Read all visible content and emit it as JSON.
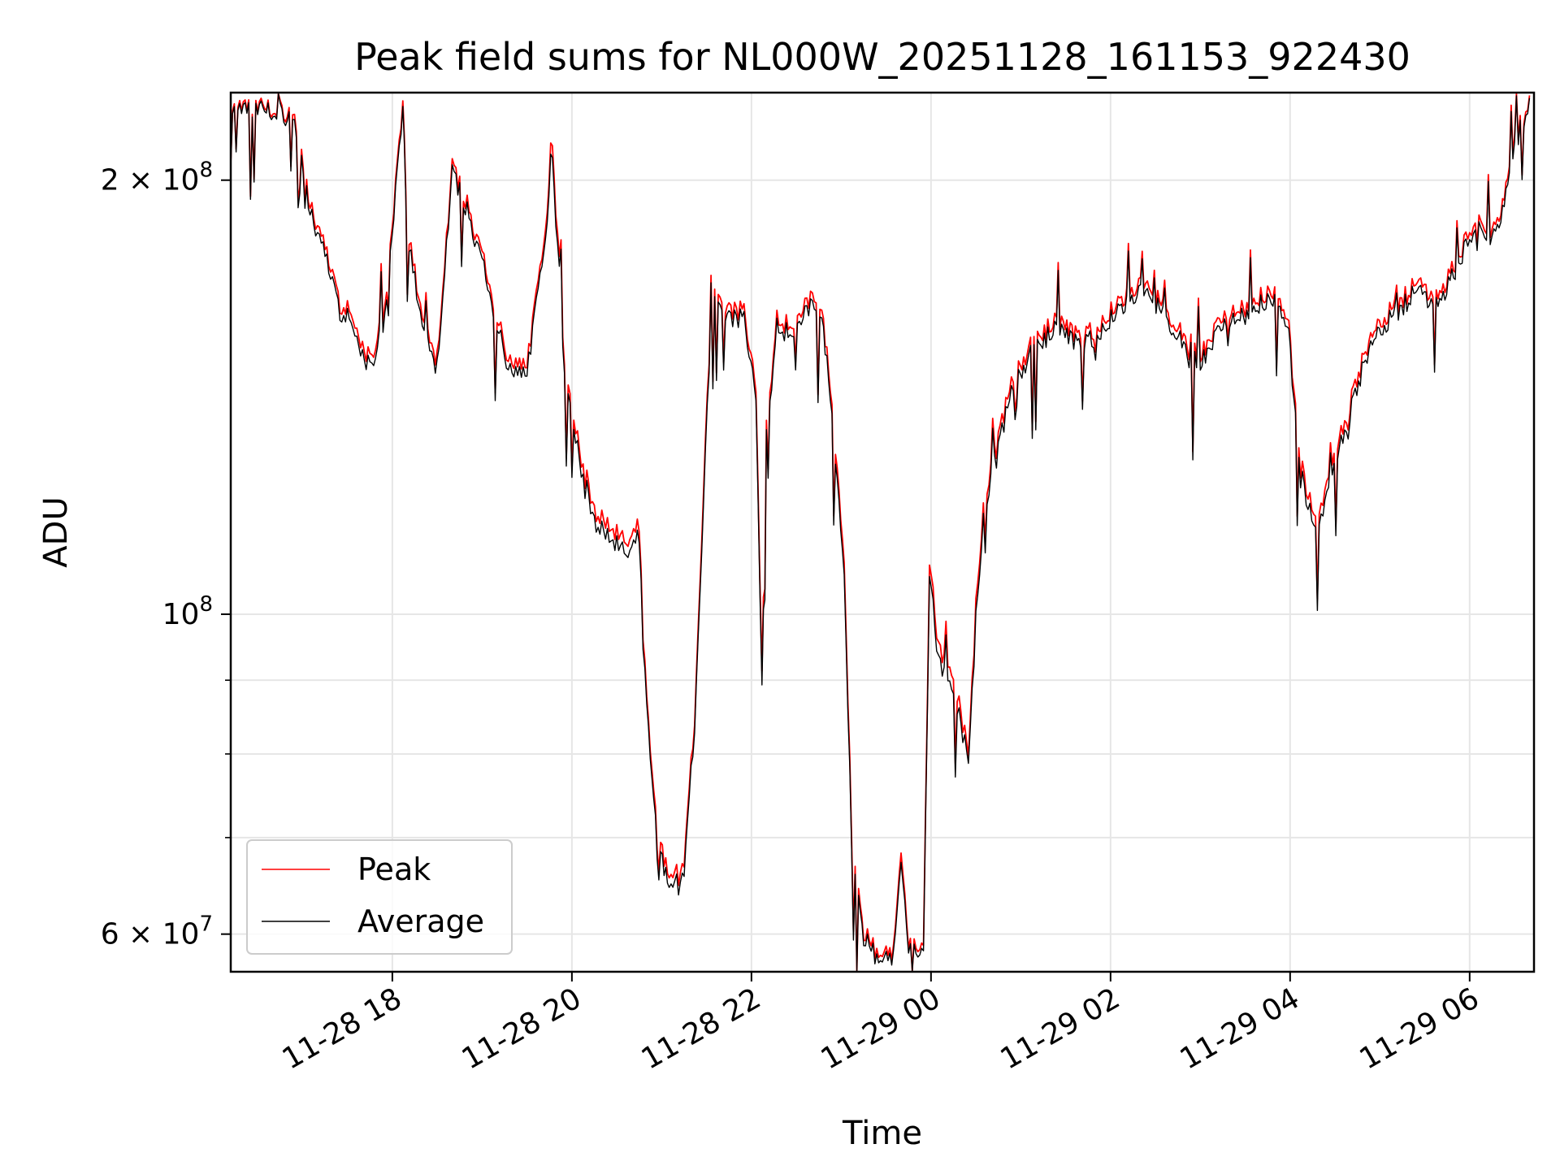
{
  "chart_data": {
    "type": "line",
    "title": "Peak field sums for NL000W_20251128_161153_922430",
    "xlabel": "Time",
    "ylabel": "ADU",
    "yscale": "log",
    "ylim": [
      56500000,
      230000000
    ],
    "xlim": [
      "2025-11-28T16:12",
      "2025-11-29T06:43"
    ],
    "grid": true,
    "legend": "lower-left",
    "x_ticks": [
      {
        "t": "2025-11-28T18:00",
        "label": "11-28 18"
      },
      {
        "t": "2025-11-28T20:00",
        "label": "11-28 20"
      },
      {
        "t": "2025-11-28T22:00",
        "label": "11-28 22"
      },
      {
        "t": "2025-11-29T00:00",
        "label": "11-29 00"
      },
      {
        "t": "2025-11-29T02:00",
        "label": "11-29 02"
      },
      {
        "t": "2025-11-29T04:00",
        "label": "11-29 04"
      },
      {
        "t": "2025-11-29T06:00",
        "label": "11-29 06"
      }
    ],
    "y_ticks_major": [
      {
        "v": 200000000,
        "mant": "2",
        "exp": "8"
      },
      {
        "v": 100000000,
        "mant": "",
        "exp": "8"
      },
      {
        "v": 60000000,
        "mant": "6",
        "exp": "7"
      }
    ],
    "y_ticks_minor": [
      70000000,
      80000000,
      90000000
    ],
    "series": [
      {
        "name": "Peak",
        "color": "#ff0000",
        "points": [
          [
            "2025-11-28T16:12",
            224000000
          ],
          [
            "2025-11-28T16:30",
            225000000
          ],
          [
            "2025-11-28T16:45",
            224000000
          ],
          [
            "2025-11-28T16:57",
            219000000
          ],
          [
            "2025-11-28T17:05",
            192000000
          ],
          [
            "2025-11-28T17:15",
            180000000
          ],
          [
            "2025-11-28T17:25",
            165000000
          ],
          [
            "2025-11-28T17:35",
            158000000
          ],
          [
            "2025-11-28T17:45",
            150000000
          ],
          [
            "2025-11-28T17:55",
            162000000
          ],
          [
            "2025-11-28T18:07",
            226000000
          ],
          [
            "2025-11-28T18:10",
            185000000
          ],
          [
            "2025-11-28T18:20",
            160000000
          ],
          [
            "2025-11-28T18:30",
            150000000
          ],
          [
            "2025-11-28T18:40",
            205000000
          ],
          [
            "2025-11-28T18:50",
            192000000
          ],
          [
            "2025-11-28T19:00",
            178000000
          ],
          [
            "2025-11-28T19:10",
            160000000
          ],
          [
            "2025-11-28T19:20",
            148000000
          ],
          [
            "2025-11-28T19:30",
            150000000
          ],
          [
            "2025-11-28T19:40",
            175000000
          ],
          [
            "2025-11-28T19:47",
            212000000
          ],
          [
            "2025-11-28T19:55",
            150000000
          ],
          [
            "2025-11-28T20:05",
            128000000
          ],
          [
            "2025-11-28T20:15",
            118000000
          ],
          [
            "2025-11-28T20:25",
            115000000
          ],
          [
            "2025-11-28T20:35",
            112000000
          ],
          [
            "2025-11-28T20:45",
            115000000
          ],
          [
            "2025-11-28T20:50",
            88000000
          ],
          [
            "2025-11-28T20:57",
            70000000
          ],
          [
            "2025-11-28T21:05",
            66000000
          ],
          [
            "2025-11-28T21:15",
            67000000
          ],
          [
            "2025-11-28T21:22",
            85000000
          ],
          [
            "2025-11-28T21:28",
            120000000
          ],
          [
            "2025-11-28T21:33",
            170000000
          ],
          [
            "2025-11-28T21:45",
            162000000
          ],
          [
            "2025-11-28T21:55",
            163000000
          ],
          [
            "2025-11-28T22:03",
            145000000
          ],
          [
            "2025-11-28T22:07",
            92000000
          ],
          [
            "2025-11-28T22:10",
            135000000
          ],
          [
            "2025-11-28T22:17",
            160000000
          ],
          [
            "2025-11-28T22:27",
            158000000
          ],
          [
            "2025-11-28T22:37",
            165000000
          ],
          [
            "2025-11-28T22:47",
            164000000
          ],
          [
            "2025-11-28T22:55",
            135000000
          ],
          [
            "2025-11-28T23:02",
            110000000
          ],
          [
            "2025-11-28T23:07",
            70000000
          ],
          [
            "2025-11-28T23:15",
            60000000
          ],
          [
            "2025-11-28T23:25",
            58000000
          ],
          [
            "2025-11-28T23:35",
            58500000
          ],
          [
            "2025-11-28T23:40",
            68000000
          ],
          [
            "2025-11-28T23:45",
            59000000
          ],
          [
            "2025-11-28T23:55",
            59500000
          ],
          [
            "2025-11-28T23:59",
            110000000
          ],
          [
            "2025-11-29T00:05",
            95000000
          ],
          [
            "2025-11-29T00:15",
            90000000
          ],
          [
            "2025-11-29T00:25",
            80000000
          ],
          [
            "2025-11-29T00:30",
            100000000
          ],
          [
            "2025-11-29T00:35",
            120000000
          ],
          [
            "2025-11-29T00:45",
            132000000
          ],
          [
            "2025-11-29T00:55",
            147000000
          ],
          [
            "2025-11-29T01:10",
            155000000
          ],
          [
            "2025-11-29T01:25",
            160000000
          ],
          [
            "2025-11-29T01:40",
            155000000
          ],
          [
            "2025-11-29T01:50",
            158000000
          ],
          [
            "2025-11-29T02:05",
            165000000
          ],
          [
            "2025-11-29T02:20",
            170000000
          ],
          [
            "2025-11-29T02:35",
            164000000
          ],
          [
            "2025-11-29T02:50",
            155000000
          ],
          [
            "2025-11-29T03:00",
            152000000
          ],
          [
            "2025-11-29T03:15",
            160000000
          ],
          [
            "2025-11-29T03:30",
            163000000
          ],
          [
            "2025-11-29T03:45",
            168000000
          ],
          [
            "2025-11-29T03:58",
            162000000
          ],
          [
            "2025-11-29T04:07",
            128000000
          ],
          [
            "2025-11-29T04:17",
            115000000
          ],
          [
            "2025-11-29T04:27",
            125000000
          ],
          [
            "2025-11-29T04:40",
            140000000
          ],
          [
            "2025-11-29T04:55",
            158000000
          ],
          [
            "2025-11-29T05:10",
            163000000
          ],
          [
            "2025-11-29T05:25",
            170000000
          ],
          [
            "2025-11-29T05:40",
            165000000
          ],
          [
            "2025-11-29T05:55",
            180000000
          ],
          [
            "2025-11-29T06:05",
            187000000
          ],
          [
            "2025-11-29T06:15",
            185000000
          ],
          [
            "2025-11-29T06:22",
            192000000
          ],
          [
            "2025-11-29T06:30",
            212000000
          ],
          [
            "2025-11-29T06:40",
            229000000
          ]
        ]
      },
      {
        "name": "Average",
        "color": "#000000",
        "points": [
          [
            "2025-11-28T16:12",
            223000000
          ],
          [
            "2025-11-28T16:30",
            224000000
          ],
          [
            "2025-11-28T16:45",
            223000000
          ],
          [
            "2025-11-28T16:57",
            217000000
          ],
          [
            "2025-11-28T17:05",
            190000000
          ],
          [
            "2025-11-28T17:15",
            178000000
          ],
          [
            "2025-11-28T17:25",
            163000000
          ],
          [
            "2025-11-28T17:35",
            156000000
          ],
          [
            "2025-11-28T17:45",
            148000000
          ],
          [
            "2025-11-28T17:55",
            160000000
          ],
          [
            "2025-11-28T18:07",
            224000000
          ],
          [
            "2025-11-28T18:10",
            183000000
          ],
          [
            "2025-11-28T18:20",
            158000000
          ],
          [
            "2025-11-28T18:30",
            148000000
          ],
          [
            "2025-11-28T18:40",
            203000000
          ],
          [
            "2025-11-28T18:50",
            190000000
          ],
          [
            "2025-11-28T19:00",
            176000000
          ],
          [
            "2025-11-28T19:10",
            158000000
          ],
          [
            "2025-11-28T19:20",
            146000000
          ],
          [
            "2025-11-28T19:30",
            148000000
          ],
          [
            "2025-11-28T19:40",
            173000000
          ],
          [
            "2025-11-28T19:47",
            208000000
          ],
          [
            "2025-11-28T19:55",
            148000000
          ],
          [
            "2025-11-28T20:05",
            126000000
          ],
          [
            "2025-11-28T20:15",
            116000000
          ],
          [
            "2025-11-28T20:25",
            113000000
          ],
          [
            "2025-11-28T20:35",
            110000000
          ],
          [
            "2025-11-28T20:45",
            113000000
          ],
          [
            "2025-11-28T20:50",
            87000000
          ],
          [
            "2025-11-28T20:57",
            69000000
          ],
          [
            "2025-11-28T21:05",
            65000000
          ],
          [
            "2025-11-28T21:15",
            66000000
          ],
          [
            "2025-11-28T21:22",
            84000000
          ],
          [
            "2025-11-28T21:28",
            118000000
          ],
          [
            "2025-11-28T21:33",
            168000000
          ],
          [
            "2025-11-28T21:45",
            160000000
          ],
          [
            "2025-11-28T21:55",
            161000000
          ],
          [
            "2025-11-28T22:03",
            143000000
          ],
          [
            "2025-11-28T22:07",
            90000000
          ],
          [
            "2025-11-28T22:10",
            133000000
          ],
          [
            "2025-11-28T22:17",
            158000000
          ],
          [
            "2025-11-28T22:27",
            156000000
          ],
          [
            "2025-11-28T22:37",
            163000000
          ],
          [
            "2025-11-28T22:47",
            162000000
          ],
          [
            "2025-11-28T22:55",
            133000000
          ],
          [
            "2025-11-28T23:02",
            108000000
          ],
          [
            "2025-11-28T23:07",
            69000000
          ],
          [
            "2025-11-28T23:15",
            59500000
          ],
          [
            "2025-11-28T23:25",
            57500000
          ],
          [
            "2025-11-28T23:35",
            58000000
          ],
          [
            "2025-11-28T23:40",
            67000000
          ],
          [
            "2025-11-28T23:45",
            58500000
          ],
          [
            "2025-11-28T23:55",
            59000000
          ],
          [
            "2025-11-28T23:59",
            108000000
          ],
          [
            "2025-11-29T00:05",
            93000000
          ],
          [
            "2025-11-29T00:15",
            88000000
          ],
          [
            "2025-11-29T00:25",
            79000000
          ],
          [
            "2025-11-29T00:30",
            98000000
          ],
          [
            "2025-11-29T00:35",
            118000000
          ],
          [
            "2025-11-29T00:45",
            130000000
          ],
          [
            "2025-11-29T00:55",
            145000000
          ],
          [
            "2025-11-29T01:10",
            153000000
          ],
          [
            "2025-11-29T01:25",
            158000000
          ],
          [
            "2025-11-29T01:40",
            153000000
          ],
          [
            "2025-11-29T01:50",
            156000000
          ],
          [
            "2025-11-29T02:05",
            163000000
          ],
          [
            "2025-11-29T02:20",
            168000000
          ],
          [
            "2025-11-29T02:35",
            162000000
          ],
          [
            "2025-11-29T02:50",
            153000000
          ],
          [
            "2025-11-29T03:00",
            150000000
          ],
          [
            "2025-11-29T03:15",
            158000000
          ],
          [
            "2025-11-29T03:30",
            161000000
          ],
          [
            "2025-11-29T03:45",
            166000000
          ],
          [
            "2025-11-29T03:58",
            160000000
          ],
          [
            "2025-11-29T04:07",
            126000000
          ],
          [
            "2025-11-29T04:17",
            113000000
          ],
          [
            "2025-11-29T04:27",
            123000000
          ],
          [
            "2025-11-29T04:40",
            138000000
          ],
          [
            "2025-11-29T04:55",
            156000000
          ],
          [
            "2025-11-29T05:10",
            161000000
          ],
          [
            "2025-11-29T05:25",
            168000000
          ],
          [
            "2025-11-29T05:40",
            163000000
          ],
          [
            "2025-11-29T05:55",
            178000000
          ],
          [
            "2025-11-29T06:05",
            185000000
          ],
          [
            "2025-11-29T06:15",
            183000000
          ],
          [
            "2025-11-29T06:22",
            190000000
          ],
          [
            "2025-11-29T06:30",
            210000000
          ],
          [
            "2025-11-29T06:40",
            228000000
          ]
        ]
      }
    ]
  }
}
